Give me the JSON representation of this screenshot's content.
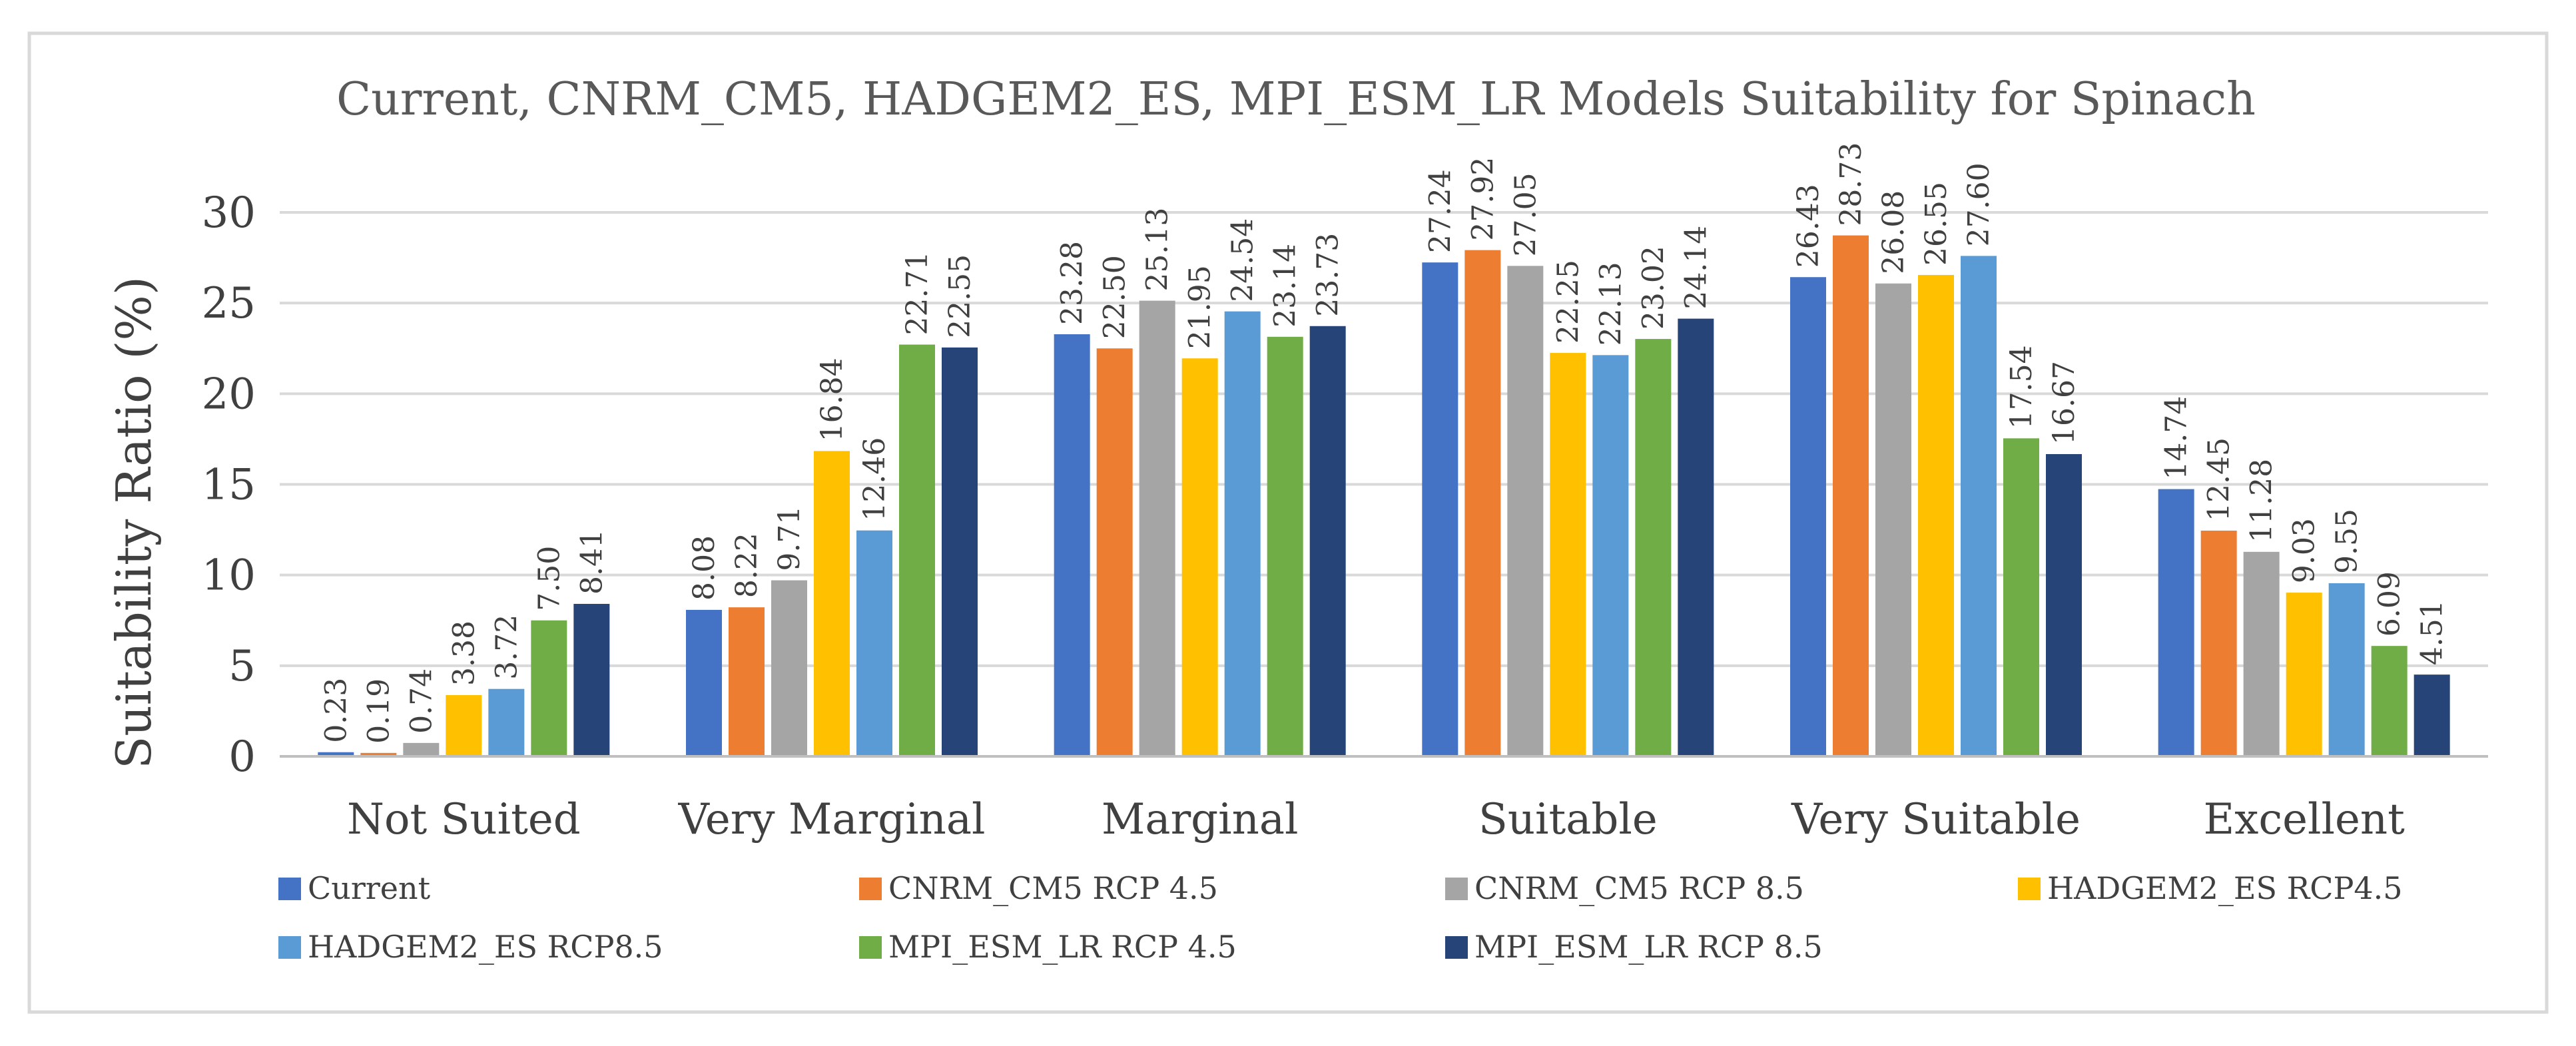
{
  "chart_data": {
    "type": "bar",
    "title": "Current, CNRM_CM5, HADGEM2_ES, MPI_ESM_LR Models Suitability for Spinach",
    "xlabel": "",
    "ylabel": "Suitability Ratio (%)",
    "ylim": [
      0,
      30
    ],
    "yticks": [
      0,
      5,
      10,
      15,
      20,
      25,
      30
    ],
    "ytick_labels": [
      "0",
      "5",
      "10",
      "15",
      "20",
      "25",
      "30"
    ],
    "grid": true,
    "legend_position": "bottom",
    "categories": [
      "Not Suited",
      "Very Marginal",
      "Marginal",
      "Suitable",
      "Very Suitable",
      "Excellent"
    ],
    "series": [
      {
        "name": "Current",
        "color": "#4472C4",
        "values": [
          0.23,
          8.08,
          23.28,
          27.24,
          26.43,
          14.74
        ],
        "labels": [
          "0.23",
          "8.08",
          "23.28",
          "27.24",
          "26.43",
          "14.74"
        ]
      },
      {
        "name": "CNRM_CM5 RCP 4.5",
        "color": "#ED7D31",
        "values": [
          0.19,
          8.22,
          22.5,
          27.92,
          28.73,
          12.45
        ],
        "labels": [
          "0.19",
          "8.22",
          "22.50",
          "27.92",
          "28.73",
          "12.45"
        ]
      },
      {
        "name": "CNRM_CM5 RCP 8.5",
        "color": "#A5A5A5",
        "values": [
          0.74,
          9.71,
          25.13,
          27.05,
          26.08,
          11.28
        ],
        "labels": [
          "0.74",
          "9.71",
          "25.13",
          "27.05",
          "26.08",
          "11.28"
        ]
      },
      {
        "name": "HADGEM2_ES RCP4.5",
        "color": "#FFC000",
        "values": [
          3.38,
          16.84,
          21.95,
          22.25,
          26.55,
          9.03
        ],
        "labels": [
          "3.38",
          "16.84",
          "21.95",
          "22.25",
          "26.55",
          "9.03"
        ]
      },
      {
        "name": "HADGEM2_ES RCP8.5",
        "color": "#5B9BD5",
        "values": [
          3.72,
          12.46,
          24.54,
          22.13,
          27.6,
          9.55
        ],
        "labels": [
          "3.72",
          "12.46",
          "24.54",
          "22.13",
          "27.60",
          "9.55"
        ]
      },
      {
        "name": "MPI_ESM_LR RCP 4.5",
        "color": "#70AD47",
        "values": [
          7.5,
          22.71,
          23.14,
          23.02,
          17.54,
          6.09
        ],
        "labels": [
          "7.50",
          "22.71",
          "23.14",
          "23.02",
          "17.54",
          "6.09"
        ]
      },
      {
        "name": "MPI_ESM_LR RCP 8.5",
        "color": "#264478",
        "values": [
          8.41,
          22.55,
          23.73,
          24.14,
          16.67,
          4.51
        ],
        "labels": [
          "8.41",
          "22.55",
          "23.73",
          "24.14",
          "16.67",
          "4.51"
        ]
      }
    ]
  }
}
